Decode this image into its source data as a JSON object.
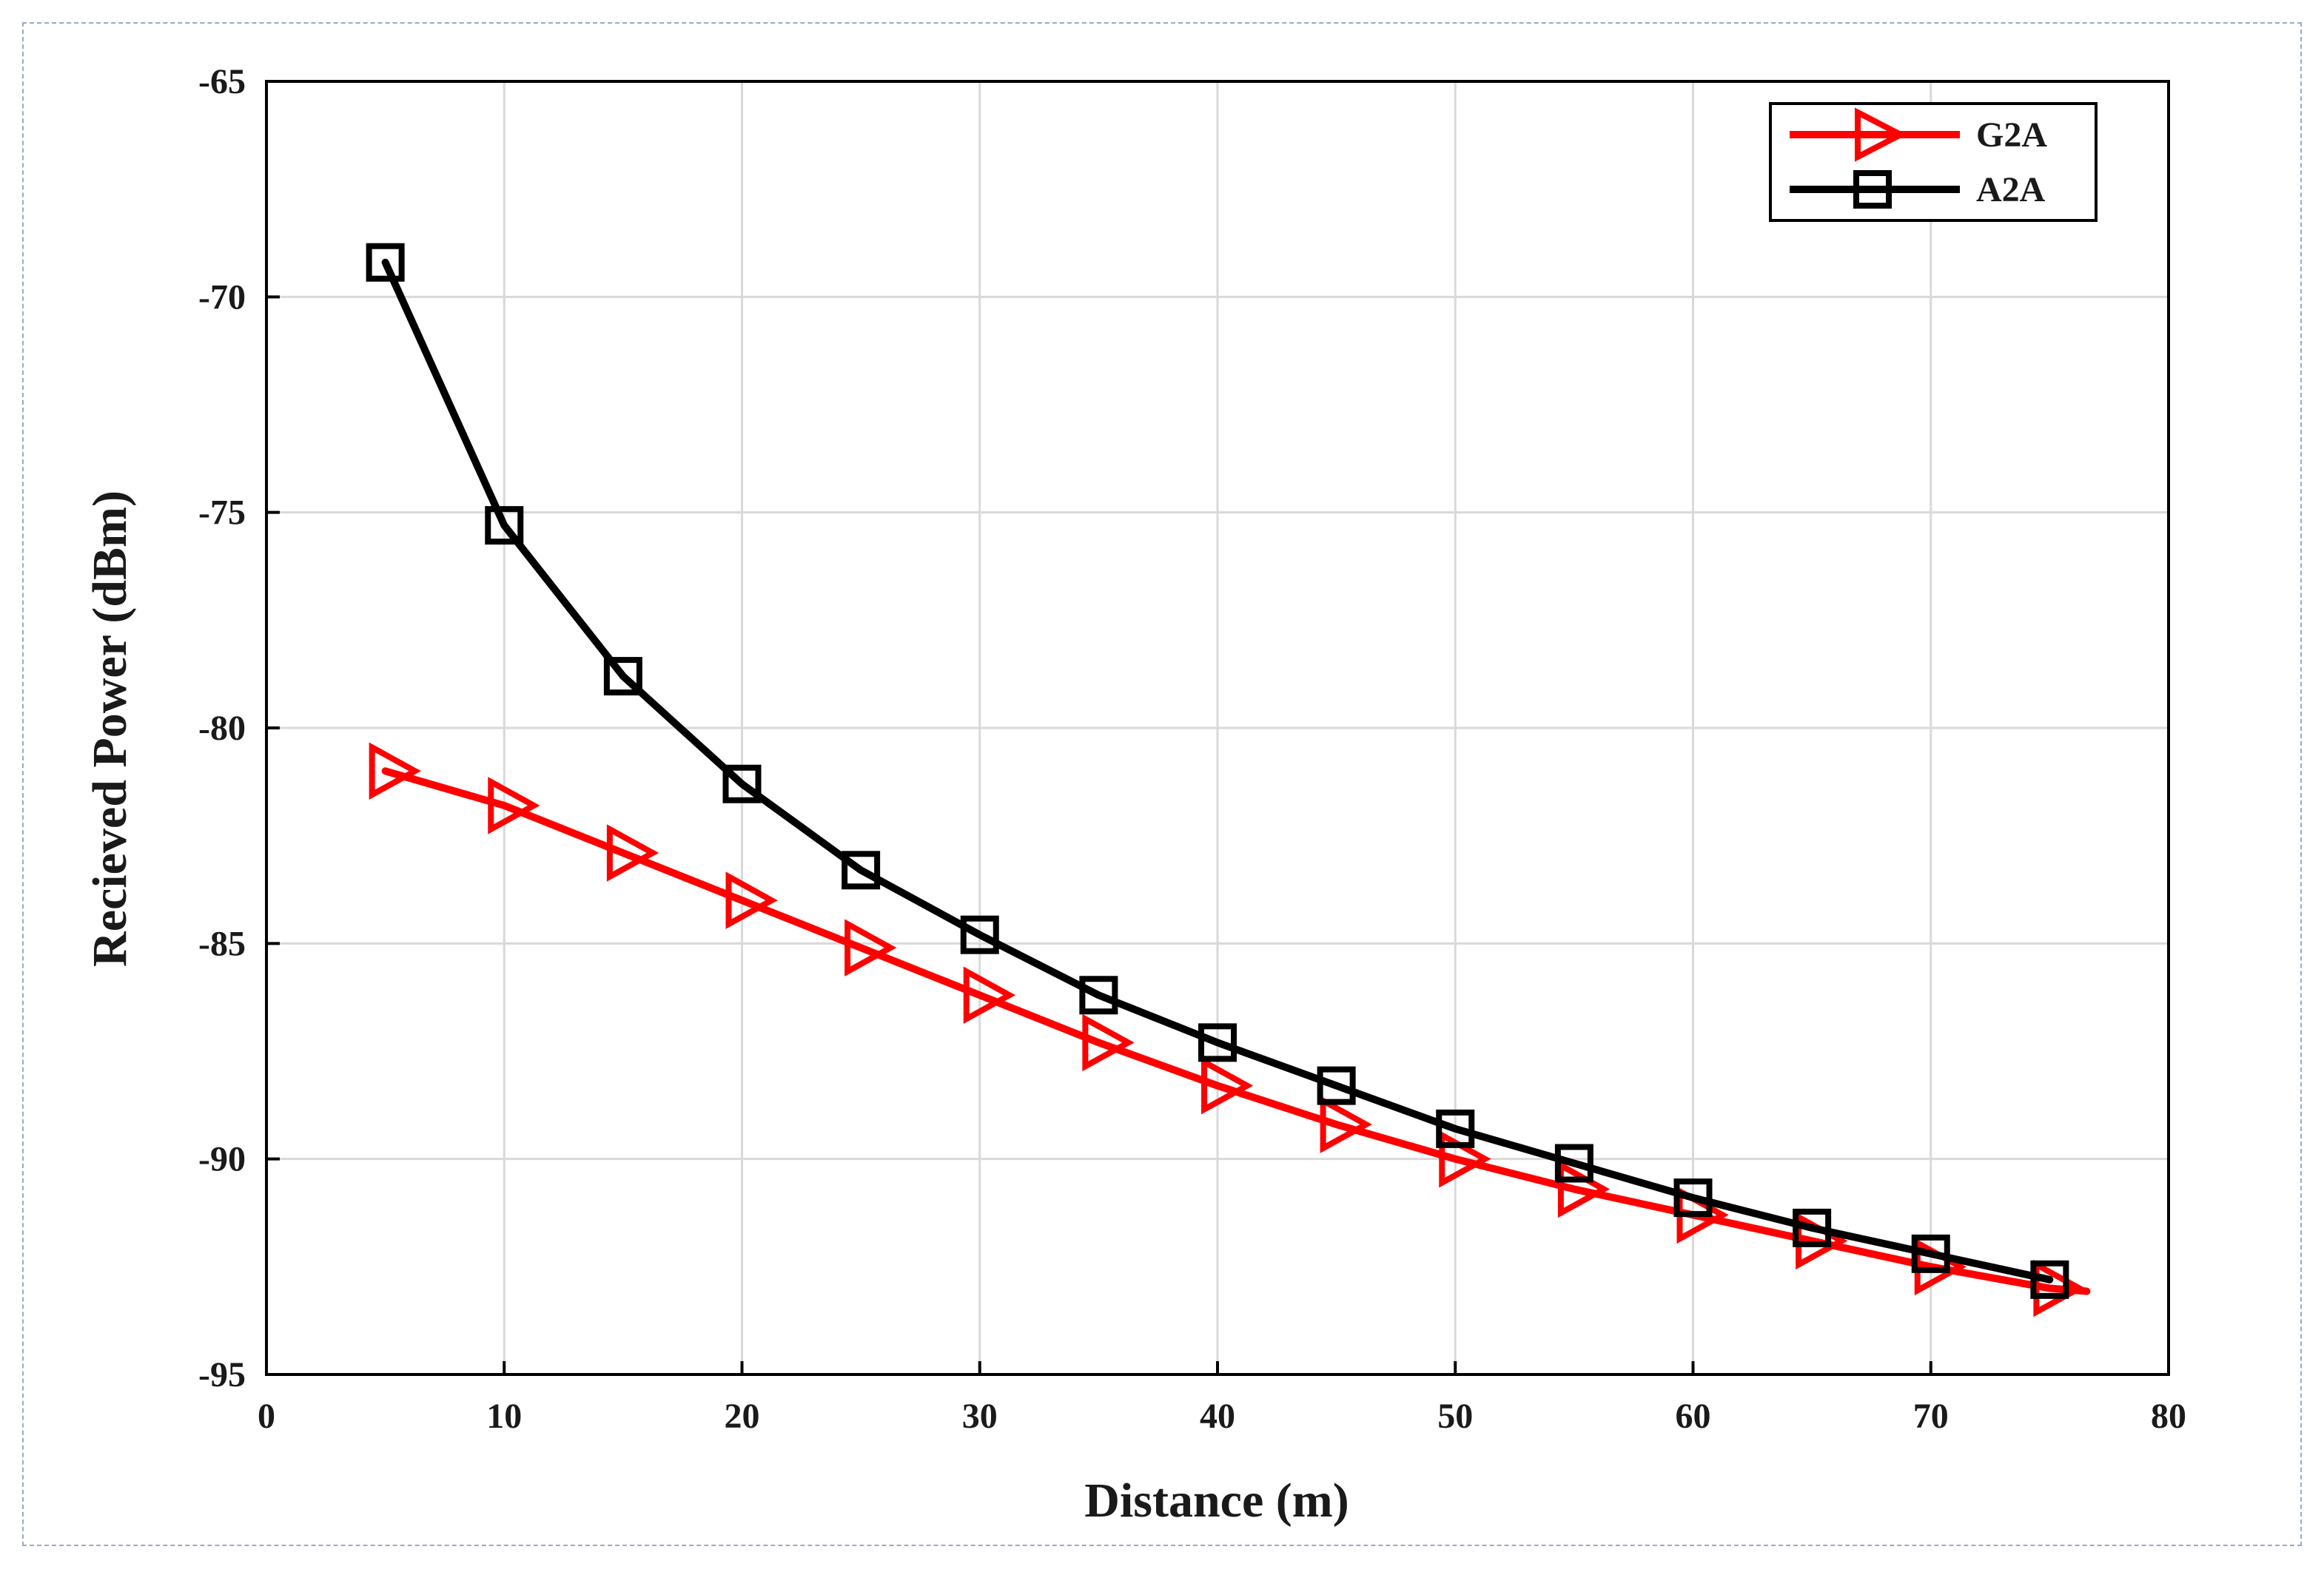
{
  "chart_data": {
    "type": "line",
    "title": "",
    "xlabel": "Distance (m)",
    "ylabel": "Recieved Power (dBm)",
    "xlim": [
      0,
      80
    ],
    "ylim": [
      -95,
      -65
    ],
    "xticks": [
      "0",
      "10",
      "20",
      "30",
      "40",
      "50",
      "60",
      "70",
      "80"
    ],
    "yticks": [
      "-65",
      "-70",
      "-75",
      "-80",
      "-85",
      "-90",
      "-95"
    ],
    "grid": true,
    "legend_position": "top-right",
    "x": [
      5,
      10,
      15,
      20,
      25,
      30,
      35,
      40,
      45,
      50,
      55,
      60,
      65,
      70,
      75
    ],
    "series": [
      {
        "name": "G2A",
        "color": "#ff0000",
        "marker": "triangle-right",
        "values": [
          -81.0,
          -81.8,
          -82.9,
          -84.0,
          -85.1,
          -86.2,
          -87.3,
          -88.3,
          -89.2,
          -90.0,
          -90.7,
          -91.3,
          -91.9,
          -92.5,
          -93.0
        ]
      },
      {
        "name": "A2A",
        "color": "#000000",
        "marker": "square",
        "values": [
          -69.2,
          -75.3,
          -78.8,
          -81.3,
          -83.3,
          -84.8,
          -86.2,
          -87.3,
          -88.3,
          -89.3,
          -90.1,
          -90.9,
          -91.6,
          -92.2,
          -92.8
        ]
      }
    ]
  }
}
